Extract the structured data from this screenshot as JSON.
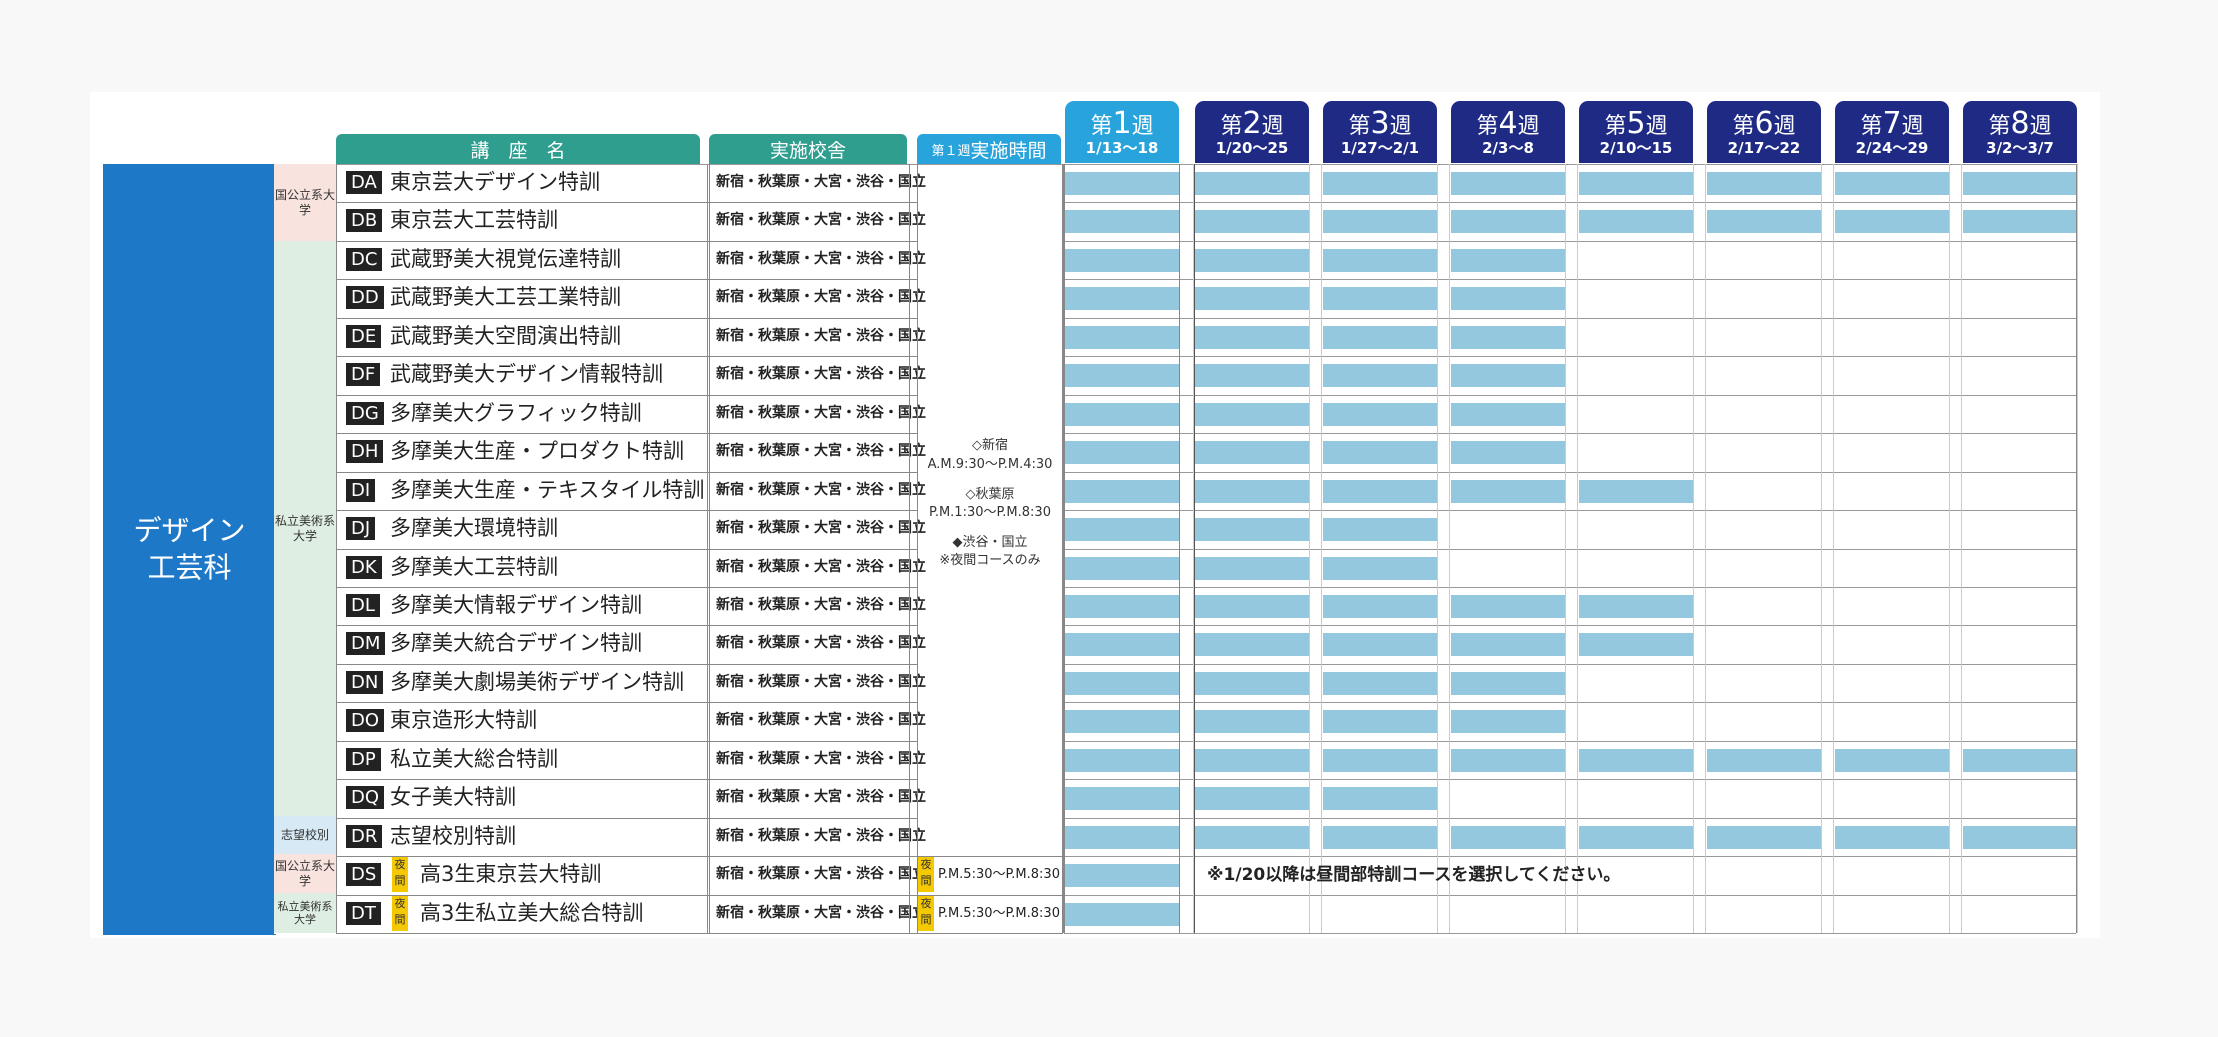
{
  "headers": {
    "course": "講　座　名",
    "school": "実施校舎",
    "week1_time_small": "第１週",
    "week1_time_big": "実施時間"
  },
  "weeks": [
    {
      "prefix": "第",
      "num": "1",
      "suffix": "週",
      "dates": "1/13〜18"
    },
    {
      "prefix": "第",
      "num": "2",
      "suffix": "週",
      "dates": "1/20〜25"
    },
    {
      "prefix": "第",
      "num": "3",
      "suffix": "週",
      "dates": "1/27〜2/1"
    },
    {
      "prefix": "第",
      "num": "4",
      "suffix": "週",
      "dates": "2/3〜8"
    },
    {
      "prefix": "第",
      "num": "5",
      "suffix": "週",
      "dates": "2/10〜15"
    },
    {
      "prefix": "第",
      "num": "6",
      "suffix": "週",
      "dates": "2/17〜22"
    },
    {
      "prefix": "第",
      "num": "7",
      "suffix": "週",
      "dates": "2/24〜29"
    },
    {
      "prefix": "第",
      "num": "8",
      "suffix": "週",
      "dates": "3/2〜3/7"
    }
  ],
  "category": {
    "line1": "デザイン",
    "line2": "工芸科"
  },
  "subcategories": [
    {
      "label": "国公立系大学"
    },
    {
      "label": "私立美術系大学"
    },
    {
      "label": "志望校別"
    },
    {
      "label": "国公立系大学"
    },
    {
      "label": "私立美術系大学"
    }
  ],
  "week1_time": {
    "l1": "◇新宿",
    "l2": "A.M.9:30〜P.M.4:30",
    "l3": "◇秋葉原",
    "l4": "P.M.1:30〜P.M.8:30",
    "l5": "◆渋谷・国立",
    "l6": "※夜間コースのみ"
  },
  "night_badge": "夜間",
  "note": "※1/20以降は昼間部特訓コースを選択してください。",
  "courses": [
    {
      "code": "DA",
      "name": "東京芸大デザイン特訓",
      "location": "新宿・秋葉原・大宮・渋谷・国立",
      "weeks": 8
    },
    {
      "code": "DB",
      "name": "東京芸大工芸特訓",
      "location": "新宿・秋葉原・大宮・渋谷・国立",
      "weeks": 8
    },
    {
      "code": "DC",
      "name": "武蔵野美大視覚伝達特訓",
      "location": "新宿・秋葉原・大宮・渋谷・国立",
      "weeks": 4
    },
    {
      "code": "DD",
      "name": "武蔵野美大工芸工業特訓",
      "location": "新宿・秋葉原・大宮・渋谷・国立",
      "weeks": 4
    },
    {
      "code": "DE",
      "name": "武蔵野美大空間演出特訓",
      "location": "新宿・秋葉原・大宮・渋谷・国立",
      "weeks": 4
    },
    {
      "code": "DF",
      "name": "武蔵野美大デザイン情報特訓",
      "location": "新宿・秋葉原・大宮・渋谷・国立",
      "weeks": 4
    },
    {
      "code": "DG",
      "name": "多摩美大グラフィック特訓",
      "location": "新宿・秋葉原・大宮・渋谷・国立",
      "weeks": 4
    },
    {
      "code": "DH",
      "name": "多摩美大生産・プロダクト特訓",
      "location": "新宿・秋葉原・大宮・渋谷・国立",
      "weeks": 4
    },
    {
      "code": "DI",
      "name": "多摩美大生産・テキスタイル特訓",
      "location": "新宿・秋葉原・大宮・渋谷・国立",
      "weeks": 5
    },
    {
      "code": "DJ",
      "name": "多摩美大環境特訓",
      "location": "新宿・秋葉原・大宮・渋谷・国立",
      "weeks": 3
    },
    {
      "code": "DK",
      "name": "多摩美大工芸特訓",
      "location": "新宿・秋葉原・大宮・渋谷・国立",
      "weeks": 3
    },
    {
      "code": "DL",
      "name": "多摩美大情報デザイン特訓",
      "location": "新宿・秋葉原・大宮・渋谷・国立",
      "weeks": 5
    },
    {
      "code": "DM",
      "name": "多摩美大統合デザイン特訓",
      "location": "新宿・秋葉原・大宮・渋谷・国立",
      "weeks": 5
    },
    {
      "code": "DN",
      "name": "多摩美大劇場美術デザイン特訓",
      "location": "新宿・秋葉原・大宮・渋谷・国立",
      "weeks": 4
    },
    {
      "code": "DO",
      "name": "東京造形大特訓",
      "location": "新宿・秋葉原・大宮・渋谷・国立",
      "weeks": 4
    },
    {
      "code": "DP",
      "name": "私立美大総合特訓",
      "location": "新宿・秋葉原・大宮・渋谷・国立",
      "weeks": 8
    },
    {
      "code": "DQ",
      "name": "女子美大特訓",
      "location": "新宿・秋葉原・大宮・渋谷・国立",
      "weeks": 3
    },
    {
      "code": "DR",
      "name": "志望校別特訓",
      "location": "新宿・秋葉原・大宮・渋谷・国立",
      "weeks": 8
    },
    {
      "code": "DS",
      "name": "高3生東京芸大特訓",
      "location": "新宿・秋葉原・大宮・渋谷・国立",
      "weeks": 1,
      "night": true,
      "time": "P.M.5:30〜P.M.8:30"
    },
    {
      "code": "DT",
      "name": "高3生私立美大総合特訓",
      "location": "新宿・秋葉原・大宮・渋谷・国立",
      "weeks": 1,
      "night": true,
      "time": "P.M.5:30〜P.M.8:30"
    }
  ]
}
